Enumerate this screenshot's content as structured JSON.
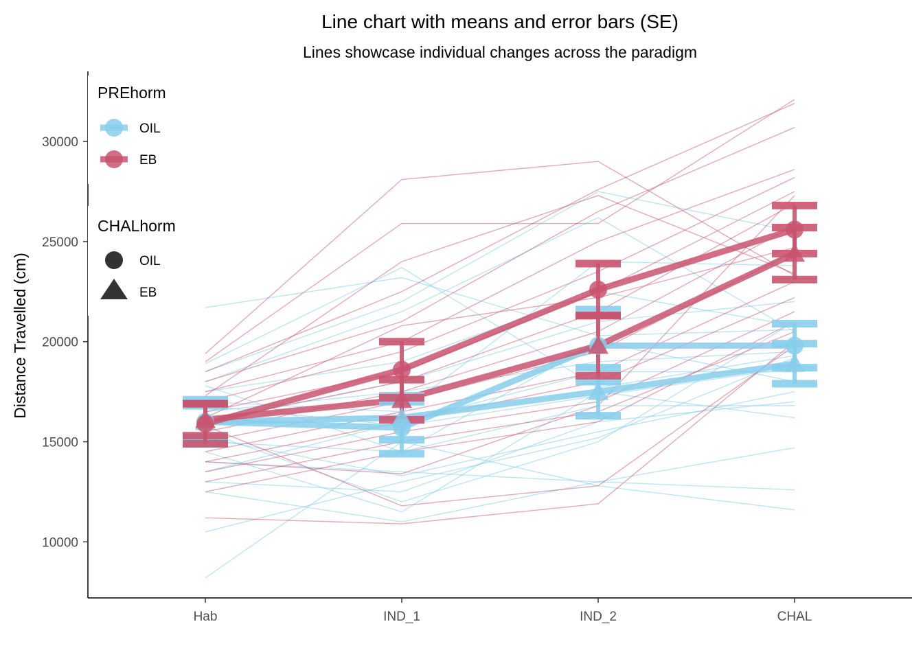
{
  "chart_data": {
    "type": "line",
    "title": "Line chart with means and error bars (SE)",
    "subtitle": "Lines showcase individual changes across the paradigm",
    "xlabel": "",
    "ylabel": "Distance Travelled (cm)",
    "categories": [
      "Hab",
      "IND_1",
      "IND_2",
      "CHAL"
    ],
    "yticks": [
      "10000",
      "15000",
      "20000",
      "25000",
      "30000"
    ],
    "ylim": [
      7200,
      33500
    ],
    "grid": false,
    "colors": {
      "OIL": "#87ceeb",
      "EB": "#c9546f",
      "legend_shape": "#333333"
    },
    "legend": [
      {
        "title": "PREhorm",
        "placement": "top-left",
        "items": [
          {
            "label": "OIL",
            "color": "#87ceeb"
          },
          {
            "label": "EB",
            "color": "#c9546f"
          }
        ]
      },
      {
        "title": "CHALhorm",
        "placement": "top-left",
        "items": [
          {
            "label": "OIL",
            "shape": "circle"
          },
          {
            "label": "EB",
            "shape": "triangle"
          }
        ]
      }
    ],
    "mean_series": [
      {
        "PREhorm": "OIL",
        "CHALhorm": "OIL",
        "color": "#87ceeb",
        "shape": "circle",
        "values": [
          16000,
          15700,
          19800,
          19800
        ],
        "se": [
          1100,
          1300,
          1800,
          1100
        ]
      },
      {
        "PREhorm": "OIL",
        "CHALhorm": "EB",
        "color": "#87ceeb",
        "shape": "triangle",
        "values": [
          16000,
          16200,
          17500,
          18900
        ],
        "se": [
          800,
          1100,
          1200,
          1000
        ]
      },
      {
        "PREhorm": "EB",
        "CHALhorm": "OIL",
        "color": "#c9546f",
        "shape": "circle",
        "values": [
          15900,
          18600,
          22600,
          25600
        ],
        "se": [
          1000,
          1400,
          1300,
          1200
        ]
      },
      {
        "PREhorm": "EB",
        "CHALhorm": "EB",
        "color": "#c9546f",
        "shape": "triangle",
        "values": [
          16100,
          17100,
          19800,
          24400
        ],
        "se": [
          800,
          1000,
          1500,
          1300
        ]
      }
    ],
    "individual_series": [
      {
        "group": "OIL",
        "values": [
          21700,
          23200,
          20300,
          20600
        ]
      },
      {
        "group": "OIL",
        "values": [
          18900,
          23700,
          17700,
          19300
        ]
      },
      {
        "group": "OIL",
        "values": [
          18500,
          22000,
          27500,
          25500
        ]
      },
      {
        "group": "OIL",
        "values": [
          18000,
          21500,
          26200,
          20500
        ]
      },
      {
        "group": "OIL",
        "values": [
          17500,
          19000,
          22500,
          20800
        ]
      },
      {
        "group": "OIL",
        "values": [
          17000,
          16500,
          24000,
          23800
        ]
      },
      {
        "group": "OIL",
        "values": [
          16500,
          17500,
          19000,
          19500
        ]
      },
      {
        "group": "OIL",
        "values": [
          16000,
          18000,
          21000,
          22000
        ]
      },
      {
        "group": "OIL",
        "values": [
          15500,
          12000,
          15000,
          21000
        ]
      },
      {
        "group": "OIL",
        "values": [
          15000,
          14500,
          20000,
          18000
        ]
      },
      {
        "group": "OIL",
        "values": [
          14500,
          11500,
          17500,
          16200
        ]
      },
      {
        "group": "OIL",
        "values": [
          14000,
          13500,
          13000,
          14700
        ]
      },
      {
        "group": "OIL",
        "values": [
          13500,
          16000,
          18500,
          18500
        ]
      },
      {
        "group": "OIL",
        "values": [
          13000,
          12500,
          16000,
          17000
        ]
      },
      {
        "group": "OIL",
        "values": [
          12500,
          11000,
          13000,
          12600
        ]
      },
      {
        "group": "OIL",
        "values": [
          10500,
          13000,
          15200,
          19200
        ]
      },
      {
        "group": "OIL",
        "values": [
          8200,
          15000,
          12800,
          11600
        ]
      },
      {
        "group": "OIL",
        "values": [
          17800,
          14500,
          16800,
          16800
        ]
      },
      {
        "group": "OIL",
        "values": [
          15200,
          13300,
          15500,
          17500
        ]
      },
      {
        "group": "OIL",
        "values": [
          16800,
          15800,
          17300,
          18700
        ]
      },
      {
        "group": "EB",
        "values": [
          19400,
          28100,
          29000,
          23300
        ]
      },
      {
        "group": "EB",
        "values": [
          19000,
          25900,
          25900,
          32100
        ]
      },
      {
        "group": "EB",
        "values": [
          18500,
          22500,
          27600,
          31900
        ]
      },
      {
        "group": "EB",
        "values": [
          18000,
          21000,
          26500,
          30700
        ]
      },
      {
        "group": "EB",
        "values": [
          17500,
          20000,
          25000,
          28600
        ]
      },
      {
        "group": "EB",
        "values": [
          17000,
          19500,
          23500,
          28200
        ]
      },
      {
        "group": "EB",
        "values": [
          16500,
          18500,
          22500,
          27500
        ]
      },
      {
        "group": "EB",
        "values": [
          16000,
          18000,
          21500,
          26900
        ]
      },
      {
        "group": "EB",
        "values": [
          15500,
          17500,
          20500,
          25800
        ]
      },
      {
        "group": "EB",
        "values": [
          15000,
          17000,
          19500,
          24500
        ]
      },
      {
        "group": "EB",
        "values": [
          14500,
          16500,
          18500,
          23000
        ]
      },
      {
        "group": "EB",
        "values": [
          14000,
          16000,
          18000,
          22200
        ]
      },
      {
        "group": "EB",
        "values": [
          13500,
          15500,
          17000,
          21500
        ]
      },
      {
        "group": "EB",
        "values": [
          13000,
          15000,
          16500,
          20500
        ]
      },
      {
        "group": "EB",
        "values": [
          12500,
          14500,
          16000,
          21000
        ]
      },
      {
        "group": "EB",
        "values": [
          11200,
          10900,
          11900,
          20000
        ]
      },
      {
        "group": "EB",
        "values": [
          14000,
          13400,
          16800,
          27300
        ]
      },
      {
        "group": "EB",
        "values": [
          15800,
          11800,
          12800,
          19800
        ]
      },
      {
        "group": "EB",
        "values": [
          17300,
          24000,
          27300,
          23400
        ]
      },
      {
        "group": "EB",
        "values": [
          16200,
          20800,
          22200,
          24700
        ]
      }
    ]
  }
}
